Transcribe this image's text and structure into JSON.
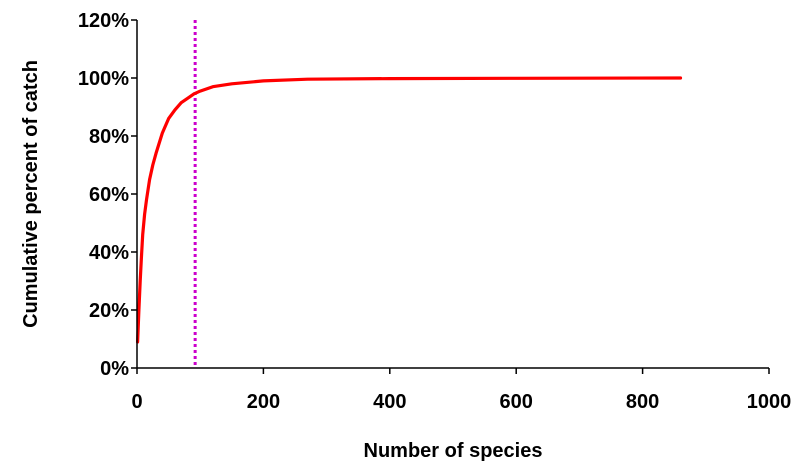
{
  "chart_data": {
    "type": "line",
    "title": "",
    "xlabel": "Number of species",
    "ylabel": "Cumulative percent of catch",
    "xlim": [
      0,
      1000
    ],
    "ylim": [
      0,
      120
    ],
    "x_ticks": [
      0,
      200,
      400,
      600,
      800,
      1000
    ],
    "x_tick_labels": [
      "0",
      "200",
      "400",
      "600",
      "800",
      "1000"
    ],
    "y_ticks": [
      0,
      20,
      40,
      60,
      80,
      100,
      120
    ],
    "y_tick_labels": [
      "0%",
      "20%",
      "40%",
      "60%",
      "80%",
      "100%",
      "120%"
    ],
    "grid": false,
    "legend": "none",
    "series": [
      {
        "color": "#ff0000",
        "x": [
          1,
          3,
          5,
          7,
          9,
          12,
          15,
          20,
          25,
          30,
          40,
          50,
          60,
          70,
          80,
          90,
          100,
          120,
          150,
          200,
          270,
          400,
          600,
          860
        ],
        "y": [
          9,
          20,
          30,
          38,
          46,
          53,
          58,
          65,
          70,
          74,
          81,
          86,
          89,
          91.5,
          93,
          94.5,
          95.5,
          97,
          98,
          99,
          99.6,
          99.8,
          99.9,
          100
        ]
      }
    ],
    "reference_line": {
      "axis": "x",
      "value": 92,
      "color": "#cc00cc",
      "style": "dotted"
    }
  }
}
